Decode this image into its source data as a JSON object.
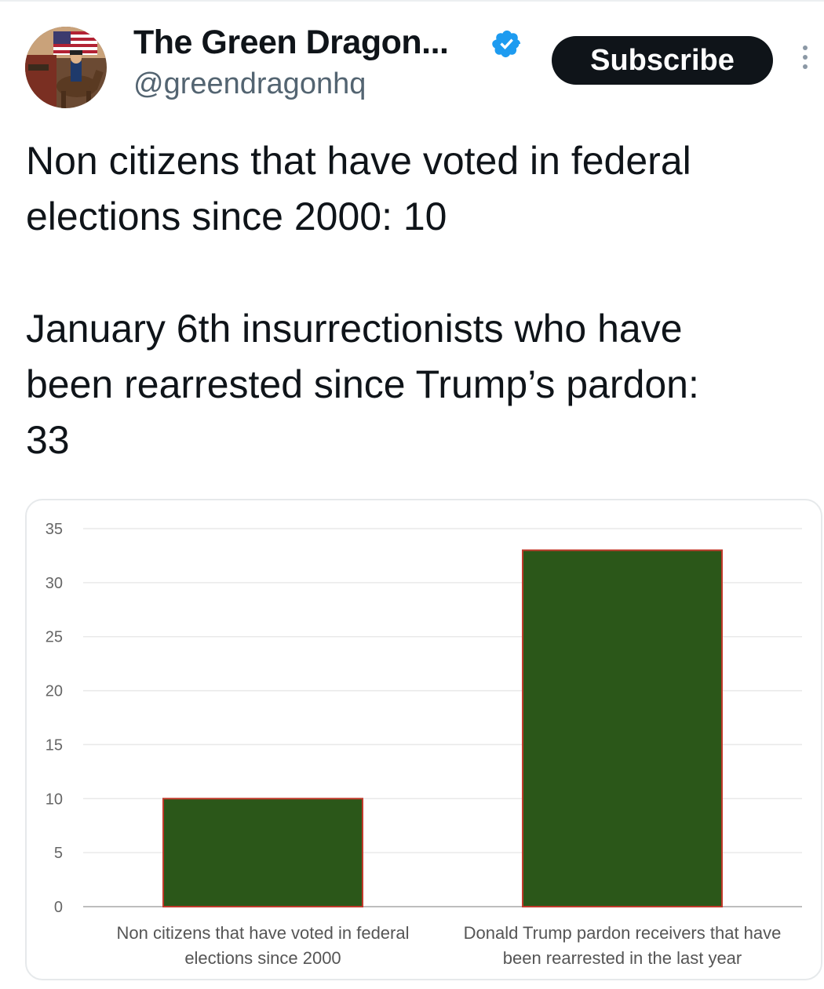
{
  "header": {
    "display_name": "The Green Dragon...",
    "handle": "@greendragonhq",
    "subscribe_label": "Subscribe",
    "verified": true
  },
  "tweet": {
    "paragraph1": "Non citizens that have voted in federal\nelections since 2000: 10",
    "paragraph2": "January 6th insurrectionists who have\nbeen rearrested since Trump’s pardon:\n33"
  },
  "colors": {
    "bar_fill": "#2b5719",
    "bar_outline": "#c0392b",
    "grid": "#e9e9e9",
    "verified_blue": "#1d9bf0"
  },
  "chart_data": {
    "type": "bar",
    "categories": [
      "Non citizens that have voted in federal\nelections since 2000",
      "Donald Trump pardon receivers that have\nbeen rearrested in the last year"
    ],
    "values": [
      10,
      33
    ],
    "yticks": [
      0,
      5,
      10,
      15,
      20,
      25,
      30,
      35
    ],
    "ylim": [
      0,
      35
    ],
    "grid": true,
    "legend": "none",
    "title": "",
    "xlabel": "",
    "ylabel": ""
  }
}
